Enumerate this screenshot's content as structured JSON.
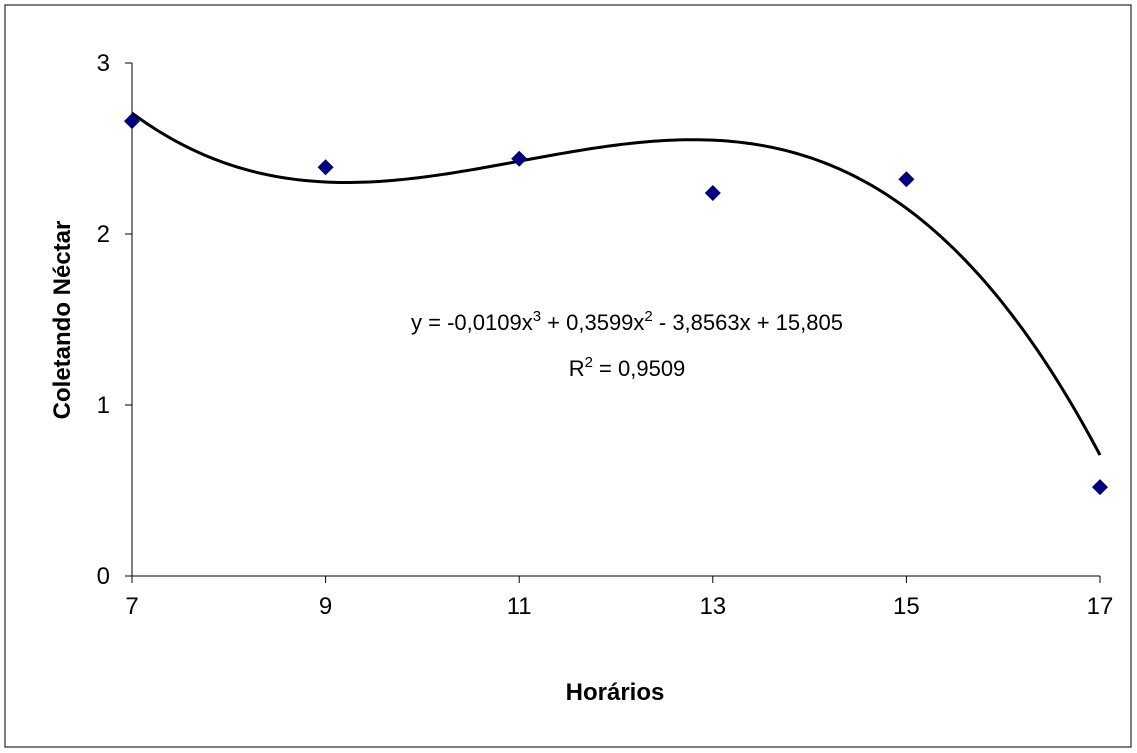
{
  "chart_data": {
    "type": "scatter",
    "x_label": "Horários",
    "y_label": "Coletando Néctar",
    "x": [
      7,
      9,
      11,
      13,
      15,
      17
    ],
    "series": [
      {
        "color": "#000080",
        "values": [
          2.66,
          2.39,
          2.44,
          2.24,
          2.32,
          0.52
        ]
      }
    ],
    "xlim": [
      7,
      17
    ],
    "xticks": [
      7,
      9,
      11,
      13,
      15,
      17
    ],
    "ylim": [
      0,
      3
    ],
    "yticks": [
      0,
      1,
      2,
      3
    ],
    "grid": false,
    "trendline": {
      "degree": 3,
      "coefficients": [
        -0.0109,
        0.3599,
        -3.8563,
        15.805
      ],
      "color": "#000000",
      "equation": [
        "y = -0,0109x",
        "3",
        " + 0,3599x",
        "2",
        " - 3,8563x + 15,805"
      ],
      "r_squared": [
        "R",
        "2",
        " = 0,9509"
      ]
    }
  }
}
